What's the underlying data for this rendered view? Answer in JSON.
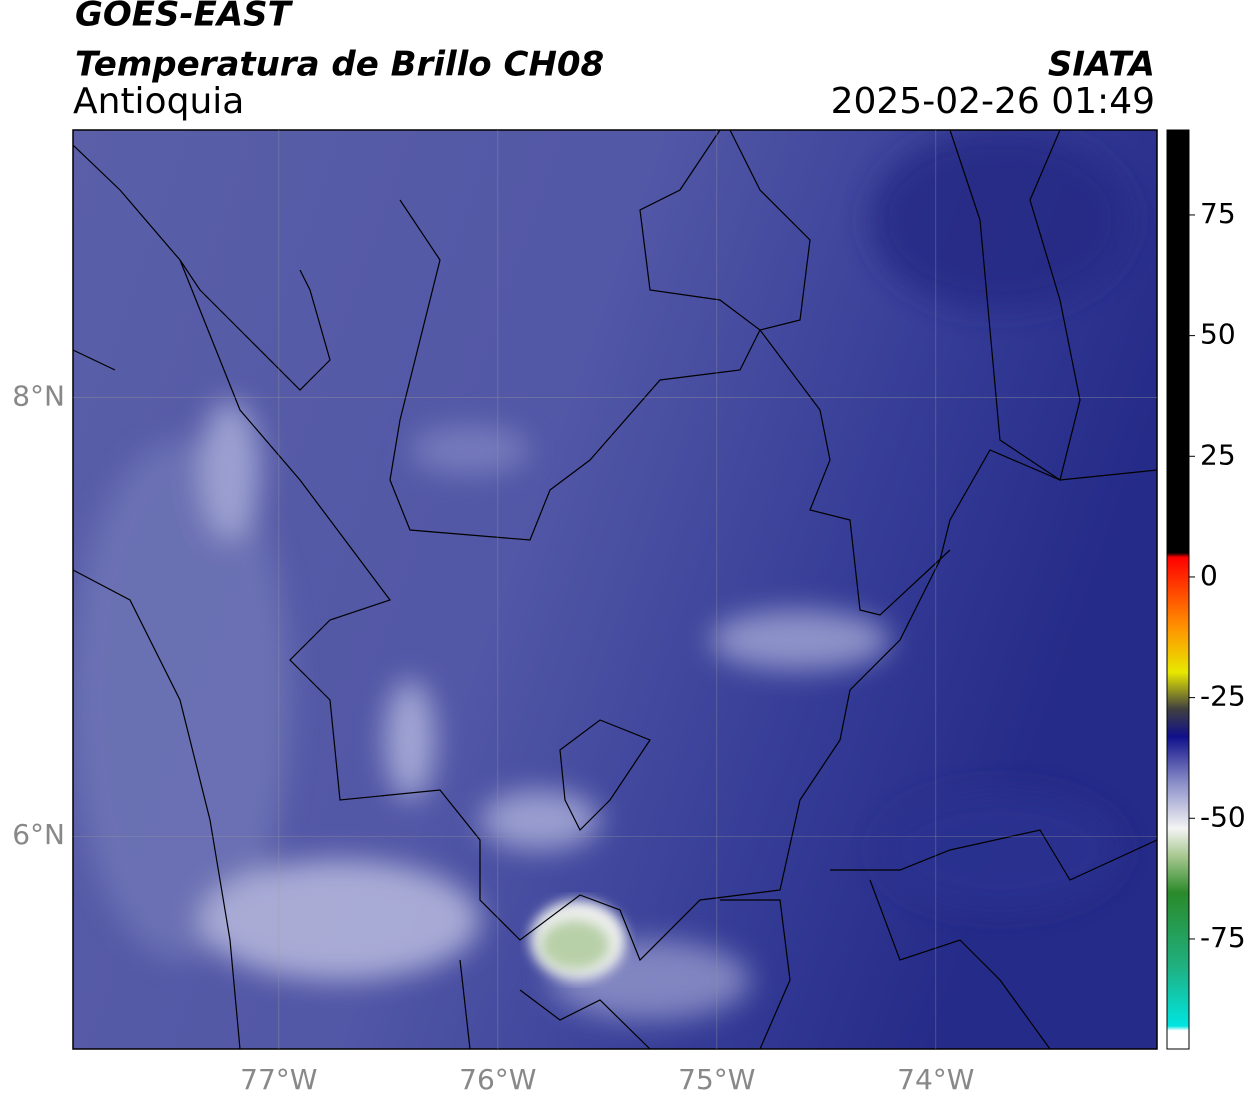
{
  "header": {
    "title": "GOES-EAST",
    "subtitle": "Temperatura de Brillo CH08",
    "region": "Antioquia",
    "source": "SIATA",
    "datetime": "2025-02-26 01:49"
  },
  "map": {
    "xlim": [
      -77.94,
      -72.99
    ],
    "ylim": [
      5.03,
      9.22
    ],
    "xticks": [
      {
        "value": -77,
        "label": "77°W"
      },
      {
        "value": -76,
        "label": "76°W"
      },
      {
        "value": -75,
        "label": "75°W"
      },
      {
        "value": -74,
        "label": "74°W"
      }
    ],
    "yticks": [
      {
        "value": 8,
        "label": "8°N"
      },
      {
        "value": 6,
        "label": "6°N"
      }
    ]
  },
  "colorbar": {
    "lim": [
      -97.8,
      92.6
    ],
    "ticks": [
      75,
      50,
      25,
      0,
      -25,
      -50,
      -75
    ]
  }
}
